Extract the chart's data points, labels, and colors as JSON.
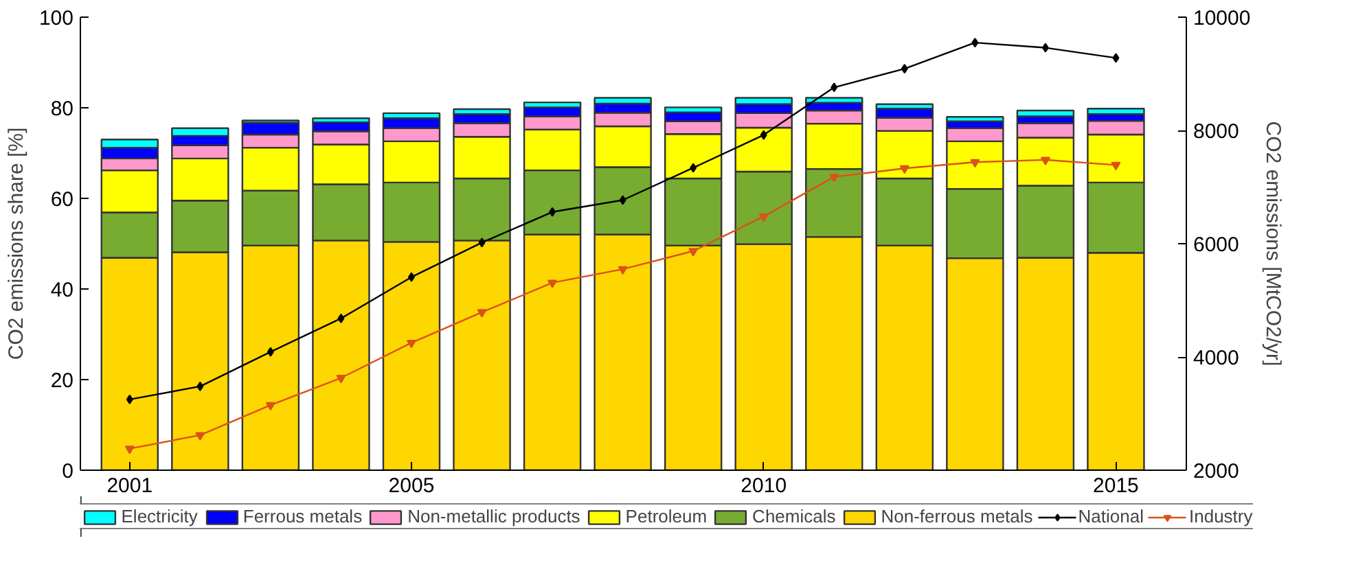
{
  "chart_data": {
    "type": "bar",
    "stacked": true,
    "x": [
      2001,
      2002,
      2003,
      2004,
      2005,
      2006,
      2007,
      2008,
      2009,
      2010,
      2011,
      2012,
      2013,
      2014,
      2015
    ],
    "xlim": [
      2000.3,
      2016.0
    ],
    "xticks": [
      2001,
      2005,
      2010,
      2015
    ],
    "ylabel": "CO2 emissions share [%]",
    "ylim": [
      0,
      100
    ],
    "yticks": [
      0,
      20,
      40,
      60,
      80,
      100
    ],
    "y2label": "CO2 emissions [MtCO2/yr]",
    "y2lim": [
      2000,
      10000
    ],
    "y2ticks": [
      2000,
      4000,
      6000,
      8000,
      10000
    ],
    "grid": false,
    "legend": "bottom",
    "series": [
      {
        "name": "Non-ferrous metals",
        "color": "#ffd700",
        "values": [
          46.9,
          48.1,
          49.6,
          50.7,
          50.4,
          50.7,
          52.0,
          52.0,
          49.6,
          49.9,
          51.5,
          49.6,
          46.8,
          46.9,
          48.0
        ]
      },
      {
        "name": "Chemicals",
        "color": "#77ac30",
        "values": [
          10.0,
          11.4,
          12.1,
          12.4,
          13.1,
          13.7,
          14.2,
          14.9,
          14.8,
          16.0,
          15.0,
          14.8,
          15.3,
          15.9,
          15.5
        ]
      },
      {
        "name": "Petroleum",
        "color": "#ffff00",
        "values": [
          9.3,
          9.3,
          9.5,
          8.8,
          9.1,
          9.2,
          9.0,
          9.0,
          9.8,
          9.7,
          10.0,
          10.5,
          10.5,
          10.6,
          10.6
        ]
      },
      {
        "name": "Non-metallic products",
        "color": "#ff99cc",
        "values": [
          2.6,
          2.9,
          2.9,
          2.9,
          2.9,
          3.0,
          2.9,
          3.0,
          2.8,
          3.2,
          2.9,
          2.9,
          2.9,
          3.2,
          3.0
        ]
      },
      {
        "name": "Ferrous metals",
        "color": "#0000ff",
        "values": [
          2.4,
          2.1,
          2.6,
          2.0,
          2.2,
          2.0,
          2.0,
          2.0,
          2.0,
          2.0,
          1.7,
          2.0,
          1.5,
          1.5,
          1.5
        ]
      },
      {
        "name": "Electricity",
        "color": "#00ffff",
        "values": [
          1.8,
          1.7,
          0.5,
          0.9,
          1.1,
          1.1,
          1.1,
          1.3,
          1.1,
          1.4,
          1.1,
          1.0,
          1.0,
          1.3,
          1.2
        ]
      },
      {
        "name": "National",
        "type": "line",
        "axis": "y2",
        "color": "#000000",
        "marker": "diamond",
        "values": [
          3250,
          3480,
          4090,
          4680,
          5410,
          6020,
          6560,
          6770,
          7340,
          7920,
          8760,
          9090,
          9550,
          9460,
          9280
        ]
      },
      {
        "name": "Industry",
        "type": "line",
        "axis": "y2",
        "color": "#d95319",
        "marker": "triangle",
        "values": [
          2380,
          2620,
          3150,
          3630,
          4250,
          4790,
          5310,
          5550,
          5870,
          6480,
          7180,
          7330,
          7440,
          7480,
          7390
        ]
      }
    ]
  }
}
